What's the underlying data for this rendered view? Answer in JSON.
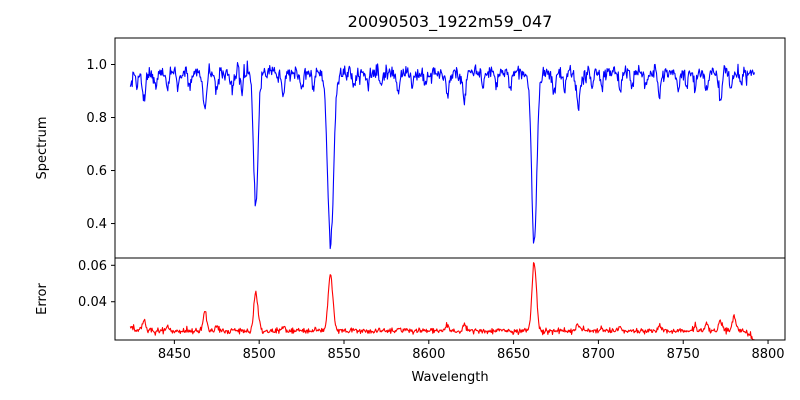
{
  "title": "20090503_1922m59_047",
  "colors": {
    "spectrum_line": "#0000ff",
    "error_line": "#ff0000",
    "axis": "#000000",
    "background": "#ffffff"
  },
  "chart_data": {
    "type": "line",
    "title": "20090503_1922m59_047",
    "xlabel": "Wavelength",
    "legend": "none",
    "grid": false,
    "xlim": [
      8415,
      8810
    ],
    "x_ticks": [
      8450,
      8500,
      8550,
      8600,
      8650,
      8700,
      8750,
      8800
    ],
    "x_tick_labels": [
      "8450",
      "8500",
      "8550",
      "8600",
      "8650",
      "8700",
      "8750",
      "8800"
    ],
    "x_start": 8424,
    "x_end": 8792,
    "n_points": 950,
    "panels": [
      {
        "name": "spectrum",
        "ylabel": "Spectrum",
        "ylim": [
          0.27,
          1.1
        ],
        "y_ticks": [
          0.4,
          0.6,
          0.8,
          1.0
        ],
        "y_tick_labels": [
          "0.4",
          "0.6",
          "0.8",
          "1.0"
        ],
        "color": "#0000ff",
        "continuum": 0.968,
        "noise_sigma": 0.014,
        "seed": 20090503,
        "absorption_lines": [
          [
            8424,
            0.05,
            0.8
          ],
          [
            8428,
            0.05,
            0.7
          ],
          [
            8432,
            0.1,
            0.9
          ],
          [
            8439,
            0.06,
            0.8
          ],
          [
            8446,
            0.07,
            0.8
          ],
          [
            8452,
            0.06,
            0.7
          ],
          [
            8459,
            0.05,
            0.7
          ],
          [
            8468,
            0.13,
            1.0
          ],
          [
            8475,
            0.07,
            0.8
          ],
          [
            8484,
            0.06,
            0.8
          ],
          [
            8490,
            0.05,
            0.7
          ],
          [
            8498.02,
            0.5,
            1.3
          ],
          [
            8514,
            0.09,
            0.9
          ],
          [
            8525,
            0.06,
            0.8
          ],
          [
            8532,
            0.05,
            0.7
          ],
          [
            8542.09,
            0.64,
            1.8
          ],
          [
            8556,
            0.06,
            0.8
          ],
          [
            8564,
            0.05,
            0.7
          ],
          [
            8572,
            0.05,
            0.7
          ],
          [
            8582,
            0.07,
            0.8
          ],
          [
            8590,
            0.05,
            0.7
          ],
          [
            8598,
            0.06,
            0.8
          ],
          [
            8611,
            0.09,
            0.9
          ],
          [
            8621,
            0.1,
            0.9
          ],
          [
            8632,
            0.05,
            0.7
          ],
          [
            8640,
            0.05,
            0.7
          ],
          [
            8648,
            0.06,
            0.8
          ],
          [
            8662.14,
            0.65,
            1.5
          ],
          [
            8674,
            0.08,
            0.9
          ],
          [
            8680,
            0.06,
            0.8
          ],
          [
            8688,
            0.12,
            1.0
          ],
          [
            8696,
            0.05,
            0.7
          ],
          [
            8702,
            0.06,
            0.8
          ],
          [
            8713,
            0.07,
            0.8
          ],
          [
            8720,
            0.05,
            0.7
          ],
          [
            8728,
            0.06,
            0.8
          ],
          [
            8736,
            0.09,
            0.9
          ],
          [
            8747,
            0.06,
            0.8
          ],
          [
            8752,
            0.05,
            0.7
          ],
          [
            8757,
            0.07,
            0.8
          ],
          [
            8764,
            0.06,
            0.8
          ],
          [
            8772,
            0.1,
            0.9
          ],
          [
            8778,
            0.06,
            0.8
          ],
          [
            8784,
            0.05,
            0.7
          ]
        ]
      },
      {
        "name": "error",
        "ylabel": "Error",
        "ylim": [
          0.019,
          0.064
        ],
        "y_ticks": [
          0.04,
          0.06
        ],
        "y_tick_labels": [
          "0.04",
          "0.06"
        ],
        "color": "#ff0000",
        "baseline": 0.024,
        "noise_sigma": 0.0008,
        "seed": 47,
        "spikes": [
          [
            8425,
            0.003,
            1.0
          ],
          [
            8432,
            0.006,
            1.0
          ],
          [
            8446,
            0.002,
            0.8
          ],
          [
            8468,
            0.011,
            1.0
          ],
          [
            8475,
            0.003,
            0.8
          ],
          [
            8498.02,
            0.021,
            1.2
          ],
          [
            8514,
            0.003,
            0.9
          ],
          [
            8542.09,
            0.031,
            1.4
          ],
          [
            8582,
            0.002,
            0.8
          ],
          [
            8611,
            0.003,
            0.9
          ],
          [
            8621,
            0.003,
            0.9
          ],
          [
            8662.14,
            0.037,
            1.3
          ],
          [
            8688,
            0.004,
            0.9
          ],
          [
            8702,
            0.002,
            0.8
          ],
          [
            8713,
            0.002,
            0.8
          ],
          [
            8736,
            0.004,
            0.9
          ],
          [
            8757,
            0.003,
            0.9
          ],
          [
            8764,
            0.004,
            0.9
          ],
          [
            8772,
            0.006,
            1.0
          ],
          [
            8780,
            0.008,
            1.2
          ]
        ],
        "end_dip": {
          "start": 8786,
          "amount": 0.005
        }
      }
    ]
  }
}
